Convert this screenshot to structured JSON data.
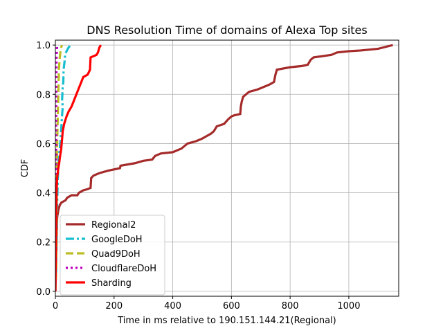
{
  "chart_data": {
    "type": "line",
    "title": "DNS Resolution Time of domains of Alexa Top sites",
    "xlabel": "Time in ms relative to 190.151.144.21(Regional)",
    "ylabel": "CDF",
    "xlim": [
      0,
      1170
    ],
    "ylim": [
      -0.02,
      1.02
    ],
    "xticks": [
      0,
      200,
      400,
      600,
      800,
      1000
    ],
    "yticks": [
      0.0,
      0.2,
      0.4,
      0.6,
      0.8,
      1.0
    ],
    "grid": true,
    "legend_position": "lower-left",
    "series": [
      {
        "name": "Regional2",
        "color": "#a52a2a",
        "style": "solid",
        "points": [
          [
            0,
            0.0
          ],
          [
            2,
            0.1
          ],
          [
            4,
            0.2
          ],
          [
            6,
            0.3
          ],
          [
            10,
            0.33
          ],
          [
            15,
            0.35
          ],
          [
            20,
            0.36
          ],
          [
            35,
            0.37
          ],
          [
            40,
            0.38
          ],
          [
            55,
            0.39
          ],
          [
            75,
            0.39
          ],
          [
            80,
            0.4
          ],
          [
            95,
            0.41
          ],
          [
            110,
            0.415
          ],
          [
            120,
            0.42
          ],
          [
            122,
            0.46
          ],
          [
            130,
            0.47
          ],
          [
            150,
            0.48
          ],
          [
            180,
            0.49
          ],
          [
            220,
            0.5
          ],
          [
            222,
            0.51
          ],
          [
            270,
            0.52
          ],
          [
            300,
            0.53
          ],
          [
            330,
            0.535
          ],
          [
            340,
            0.55
          ],
          [
            360,
            0.56
          ],
          [
            400,
            0.565
          ],
          [
            430,
            0.58
          ],
          [
            450,
            0.6
          ],
          [
            480,
            0.61
          ],
          [
            500,
            0.62
          ],
          [
            530,
            0.64
          ],
          [
            540,
            0.65
          ],
          [
            550,
            0.67
          ],
          [
            575,
            0.68
          ],
          [
            590,
            0.7
          ],
          [
            600,
            0.71
          ],
          [
            610,
            0.715
          ],
          [
            630,
            0.72
          ],
          [
            632,
            0.75
          ],
          [
            635,
            0.77
          ],
          [
            640,
            0.79
          ],
          [
            660,
            0.81
          ],
          [
            690,
            0.82
          ],
          [
            710,
            0.83
          ],
          [
            730,
            0.84
          ],
          [
            745,
            0.85
          ],
          [
            750,
            0.88
          ],
          [
            755,
            0.9
          ],
          [
            800,
            0.91
          ],
          [
            840,
            0.915
          ],
          [
            860,
            0.92
          ],
          [
            870,
            0.94
          ],
          [
            880,
            0.95
          ],
          [
            940,
            0.96
          ],
          [
            950,
            0.965
          ],
          [
            960,
            0.97
          ],
          [
            1000,
            0.975
          ],
          [
            1040,
            0.978
          ],
          [
            1100,
            0.985
          ],
          [
            1150,
            1.0
          ]
        ]
      },
      {
        "name": "GoogleDoH",
        "color": "#17becf",
        "style": "dashdot",
        "points": [
          [
            0,
            0.0
          ],
          [
            3,
            0.1
          ],
          [
            5,
            0.3
          ],
          [
            8,
            0.45
          ],
          [
            12,
            0.55
          ],
          [
            15,
            0.58
          ],
          [
            18,
            0.62
          ],
          [
            20,
            0.66
          ],
          [
            22,
            0.7
          ],
          [
            25,
            0.75
          ],
          [
            23,
            0.78
          ],
          [
            25,
            0.83
          ],
          [
            27,
            0.85
          ],
          [
            28,
            0.9
          ],
          [
            30,
            0.92
          ],
          [
            32,
            0.94
          ],
          [
            33,
            0.96
          ],
          [
            38,
            0.975
          ],
          [
            45,
            0.99
          ],
          [
            52,
            1.0
          ]
        ]
      },
      {
        "name": "Quad9DoH",
        "color": "#bcbd22",
        "style": "dashed",
        "points": [
          [
            0,
            0.0
          ],
          [
            3,
            0.1
          ],
          [
            4,
            0.3
          ],
          [
            5,
            0.5
          ],
          [
            6,
            0.6
          ],
          [
            8,
            0.7
          ],
          [
            10,
            0.8
          ],
          [
            12,
            0.9
          ],
          [
            15,
            0.95
          ],
          [
            18,
            0.98
          ],
          [
            22,
            1.0
          ]
        ]
      },
      {
        "name": "CloudflareDoH",
        "color": "#bf00bf",
        "style": "dotted",
        "points": [
          [
            0,
            0.0
          ],
          [
            1,
            0.2
          ],
          [
            2,
            0.4
          ],
          [
            3,
            0.6
          ],
          [
            3,
            0.8
          ],
          [
            4,
            0.95
          ],
          [
            6,
            1.0
          ]
        ]
      },
      {
        "name": "Sharding",
        "color": "#ff0000",
        "style": "solid",
        "points": [
          [
            0,
            0.0
          ],
          [
            2,
            0.2
          ],
          [
            4,
            0.4
          ],
          [
            6,
            0.46
          ],
          [
            10,
            0.5
          ],
          [
            13,
            0.52
          ],
          [
            15,
            0.54
          ],
          [
            20,
            0.58
          ],
          [
            23,
            0.62
          ],
          [
            25,
            0.65
          ],
          [
            30,
            0.68
          ],
          [
            38,
            0.71
          ],
          [
            45,
            0.73
          ],
          [
            55,
            0.75
          ],
          [
            65,
            0.78
          ],
          [
            75,
            0.81
          ],
          [
            85,
            0.84
          ],
          [
            95,
            0.87
          ],
          [
            110,
            0.88
          ],
          [
            118,
            0.9
          ],
          [
            120,
            0.95
          ],
          [
            140,
            0.96
          ],
          [
            145,
            0.97
          ],
          [
            150,
            0.99
          ],
          [
            155,
            1.0
          ]
        ]
      }
    ]
  }
}
